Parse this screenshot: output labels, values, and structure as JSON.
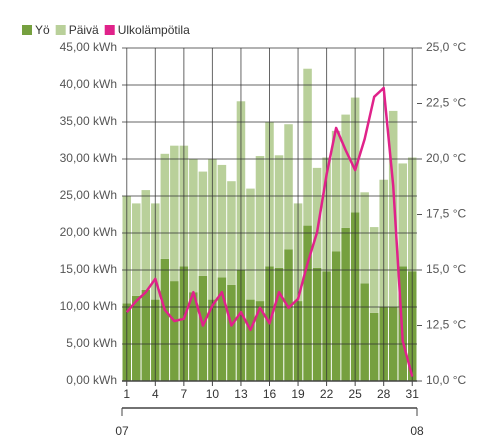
{
  "chart_data": {
    "type": "bar",
    "stacked": true,
    "x": [
      1,
      2,
      3,
      4,
      5,
      6,
      7,
      8,
      9,
      10,
      11,
      12,
      13,
      14,
      15,
      16,
      17,
      18,
      19,
      20,
      21,
      22,
      23,
      24,
      25,
      26,
      27,
      28,
      29,
      30,
      31
    ],
    "xlim": [
      0.5,
      31.5
    ],
    "xticks": [
      1,
      4,
      7,
      10,
      13,
      16,
      19,
      22,
      25,
      28,
      31
    ],
    "x_period_labels": [
      "07",
      "08"
    ],
    "ylim": [
      0,
      45
    ],
    "yticks": [
      {
        "value": 0,
        "label": "0,00 kWh"
      },
      {
        "value": 5,
        "label": "5,00 kWh"
      },
      {
        "value": 10,
        "label": "10,00 kWh"
      },
      {
        "value": 15,
        "label": "15,00 kWh"
      },
      {
        "value": 20,
        "label": "20,00 kWh"
      },
      {
        "value": 25,
        "label": "25,00 kWh"
      },
      {
        "value": 30,
        "label": "30,00 kWh"
      },
      {
        "value": 35,
        "label": "35,00 kWh"
      },
      {
        "value": 40,
        "label": "40,00 kWh"
      },
      {
        "value": 45,
        "label": "45,00 kWh"
      }
    ],
    "y2lim": [
      10,
      25
    ],
    "y2ticks": [
      {
        "value": 10,
        "label": "10,0 °C"
      },
      {
        "value": 12.5,
        "label": "12,5 °C"
      },
      {
        "value": 15,
        "label": "15,0 °C"
      },
      {
        "value": 17.5,
        "label": "17,5 °C"
      },
      {
        "value": 20,
        "label": "20,0 °C"
      },
      {
        "value": 22.5,
        "label": "22,5 °C"
      },
      {
        "value": 25,
        "label": "25,0 °C"
      }
    ],
    "grid": true,
    "legend": "top-left",
    "series": [
      {
        "name": "Yö",
        "color": "#76a03f",
        "type": "bar",
        "values": [
          10.5,
          11.5,
          12.3,
          11,
          16.5,
          13.5,
          15.5,
          12,
          14.2,
          11,
          14,
          13,
          15,
          11,
          10.8,
          15.5,
          15.3,
          17.8,
          10.8,
          21,
          15.3,
          14.8,
          17.5,
          20.7,
          22.8,
          13.2,
          9.2,
          10,
          10,
          15.5,
          14.8
        ]
      },
      {
        "name": "Päivä",
        "color": "#b9d09a",
        "type": "bar",
        "values": [
          14.5,
          12.5,
          13.5,
          13,
          14.2,
          18.3,
          16.3,
          18,
          14.1,
          19,
          15.2,
          14,
          22.8,
          15,
          19.6,
          19.5,
          15.2,
          16.9,
          13.2,
          21.2,
          13.5,
          15.4,
          16.3,
          15.3,
          15.5,
          12.3,
          11.6,
          17.2,
          26.5,
          13.9,
          15.4
        ]
      },
      {
        "name": "Ulkolämpötila",
        "color": "#e0228a",
        "type": "line",
        "axis": "y2",
        "values": [
          13.1,
          13.6,
          14.0,
          14.6,
          13.2,
          12.7,
          12.8,
          14.0,
          12.5,
          13.4,
          14.0,
          12.5,
          13.1,
          12.3,
          13.3,
          12.6,
          14.0,
          13.3,
          13.7,
          15.3,
          16.7,
          19.3,
          21.4,
          20.4,
          19.5,
          20.9,
          22.8,
          23.2,
          18.8,
          11.8,
          10.2
        ]
      }
    ]
  }
}
